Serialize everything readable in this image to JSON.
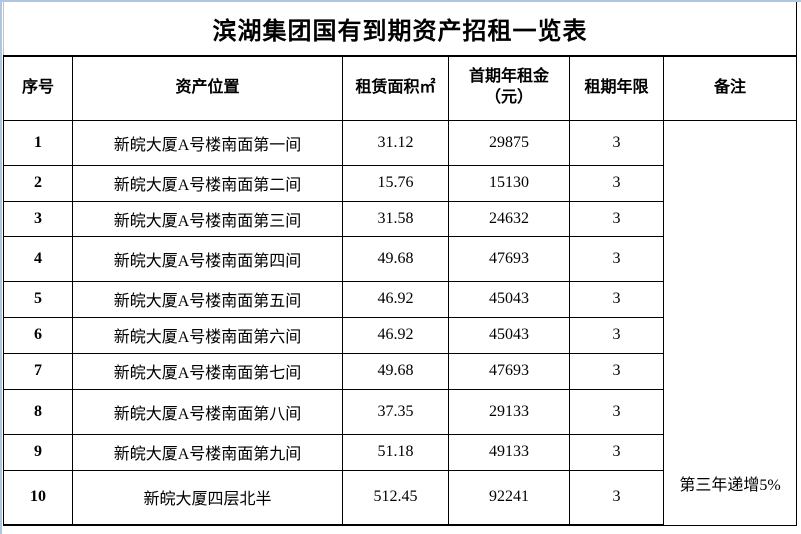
{
  "title": "滨湖集团国有到期资产招租一览表",
  "table": {
    "headers": [
      "序号",
      "资产位置",
      "租赁面积㎡",
      "首期年租金\n（元）",
      "租期年限",
      "备注"
    ],
    "rows": [
      {
        "no": "1",
        "location": "新皖大厦A号楼南面第一间",
        "area": "31.12",
        "rent": "29875",
        "term": "3"
      },
      {
        "no": "2",
        "location": "新皖大厦A号楼南面第二间",
        "area": "15.76",
        "rent": "15130",
        "term": "3"
      },
      {
        "no": "3",
        "location": "新皖大厦A号楼南面第三间",
        "area": "31.58",
        "rent": "24632",
        "term": "3"
      },
      {
        "no": "4",
        "location": "新皖大厦A号楼南面第四间",
        "area": "49.68",
        "rent": "47693",
        "term": "3"
      },
      {
        "no": "5",
        "location": "新皖大厦A号楼南面第五间",
        "area": "46.92",
        "rent": "45043",
        "term": "3"
      },
      {
        "no": "6",
        "location": "新皖大厦A号楼南面第六间",
        "area": "46.92",
        "rent": "45043",
        "term": "3"
      },
      {
        "no": "7",
        "location": "新皖大厦A号楼南面第七间",
        "area": "49.68",
        "rent": "47693",
        "term": "3"
      },
      {
        "no": "8",
        "location": "新皖大厦A号楼南面第八间",
        "area": "37.35",
        "rent": "29133",
        "term": "3"
      },
      {
        "no": "9",
        "location": "新皖大厦A号楼南面第九间",
        "area": "51.18",
        "rent": "49133",
        "term": "3"
      },
      {
        "no": "10",
        "location": "新皖大厦四层北半",
        "area": "512.45",
        "rent": "92241",
        "term": "3"
      }
    ],
    "remark": "第三年递增5%"
  },
  "colors": {
    "border": "#000000",
    "background": "#ffffff",
    "gridline_accent": "#aec6e2",
    "text": "#000000"
  }
}
